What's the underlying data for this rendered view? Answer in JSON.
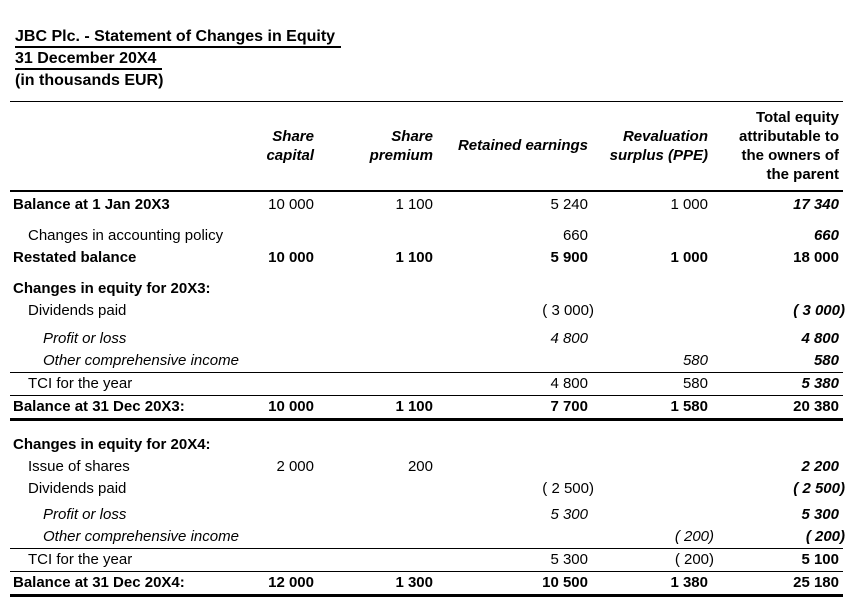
{
  "title": {
    "line1": "JBC Plc. - Statement of Changes in Equity",
    "line2": "31 December 20X4",
    "line3": "(in thousands EUR)"
  },
  "table": {
    "columns": [
      {
        "lines": [],
        "emphasis": ""
      },
      {
        "lines": [
          "Share",
          "capital"
        ],
        "emphasis": "bold-italic"
      },
      {
        "lines": [
          "Share",
          "premium"
        ],
        "emphasis": "bold-italic"
      },
      {
        "lines": [
          "Retained earnings"
        ],
        "emphasis": "bold-italic"
      },
      {
        "lines": [
          "Revaluation",
          "surplus (PPE)"
        ],
        "emphasis": "bold-italic"
      },
      {
        "lines": [
          "Total equity",
          "attributable to",
          "the owners of",
          "the parent"
        ],
        "emphasis": "bold"
      }
    ],
    "rows": [
      {
        "label": "Balance at 1 Jan 20X3",
        "indent": 0,
        "label_style": "bold",
        "values": [
          "10 000",
          "1 100",
          "5 240",
          "1 000",
          "17 340"
        ],
        "value_style": "",
        "total_style": "bold-italic",
        "gap": 2,
        "border_top": false,
        "border_bottom": false
      },
      {
        "label": "Changes in accounting policy",
        "indent": 1,
        "label_style": "",
        "values": [
          "",
          "",
          "660",
          "",
          "660"
        ],
        "value_style": "",
        "total_style": "bold-italic",
        "gap": 9,
        "border_top": false,
        "border_bottom": false
      },
      {
        "label": "Restated balance",
        "indent": 0,
        "label_style": "bold",
        "values": [
          "10 000",
          "1 100",
          "5 900",
          "1 000",
          "18 000"
        ],
        "value_style": "bold",
        "total_style": "bold",
        "gap": 0,
        "border_top": false,
        "border_bottom": false
      },
      {
        "label": "Changes in equity for 20X3:",
        "indent": 0,
        "label_style": "bold",
        "values": [
          "",
          "",
          "",
          "",
          ""
        ],
        "value_style": "",
        "total_style": "bold",
        "gap": 9,
        "border_top": false,
        "border_bottom": false
      },
      {
        "label": "Dividends paid",
        "indent": 1,
        "label_style": "",
        "values": [
          "",
          "",
          "( 3 000)",
          "",
          "( 3 000)"
        ],
        "value_style": "",
        "total_style": "bold-italic",
        "gap": 0,
        "border_top": false,
        "border_bottom": false
      },
      {
        "label": "Profit or loss",
        "indent": 2,
        "label_style": "italic",
        "values": [
          "",
          "",
          "4 800",
          "",
          "4 800"
        ],
        "value_style": "italic",
        "total_style": "bold-italic",
        "gap": 6,
        "border_top": false,
        "border_bottom": false
      },
      {
        "label": "Other comprehensive income",
        "indent": 2,
        "label_style": "italic",
        "values": [
          "",
          "",
          "",
          "580",
          "580"
        ],
        "value_style": "italic",
        "total_style": "bold-italic",
        "gap": 0,
        "border_top": false,
        "border_bottom": false
      },
      {
        "label": "TCI for the year",
        "indent": 1,
        "label_style": "",
        "values": [
          "",
          "",
          "4 800",
          "580",
          "5 380"
        ],
        "value_style": "",
        "total_style": "bold-italic",
        "gap": 0,
        "border_top": true,
        "border_bottom": false
      },
      {
        "label": "Balance at 31 Dec 20X3:",
        "indent": 0,
        "label_style": "bold",
        "values": [
          "10 000",
          "1 100",
          "7 700",
          "1 580",
          "20 380"
        ],
        "value_style": "bold",
        "total_style": "bold",
        "gap": 0,
        "border_top": true,
        "border_bottom": true
      },
      {
        "label": "Changes in equity for 20X4:",
        "indent": 0,
        "label_style": "bold",
        "values": [
          "",
          "",
          "",
          "",
          ""
        ],
        "value_style": "",
        "total_style": "bold",
        "gap": 13,
        "border_top": false,
        "border_bottom": false
      },
      {
        "label": "Issue of shares",
        "indent": 1,
        "label_style": "",
        "values": [
          "2 000",
          "200",
          "",
          "",
          "2 200"
        ],
        "value_style": "",
        "total_style": "bold-italic",
        "gap": 0,
        "border_top": false,
        "border_bottom": false
      },
      {
        "label": "Dividends paid",
        "indent": 1,
        "label_style": "",
        "values": [
          "",
          "",
          "( 2 500)",
          "",
          "( 2 500)"
        ],
        "value_style": "",
        "total_style": "bold-italic",
        "gap": 0,
        "border_top": false,
        "border_bottom": false
      },
      {
        "label": "Profit or loss",
        "indent": 2,
        "label_style": "italic",
        "values": [
          "",
          "",
          "5 300",
          "",
          "5 300"
        ],
        "value_style": "italic",
        "total_style": "bold-italic",
        "gap": 4,
        "border_top": false,
        "border_bottom": false
      },
      {
        "label": "Other comprehensive income",
        "indent": 2,
        "label_style": "italic",
        "values": [
          "",
          "",
          "",
          "( 200)",
          "( 200)"
        ],
        "value_style": "italic",
        "total_style": "bold-italic",
        "gap": 0,
        "border_top": false,
        "border_bottom": false
      },
      {
        "label": "TCI for the year",
        "indent": 1,
        "label_style": "",
        "values": [
          "",
          "",
          "5 300",
          "( 200)",
          "5 100"
        ],
        "value_style": "",
        "total_style": "bold",
        "gap": 0,
        "border_top": true,
        "border_bottom": false
      },
      {
        "label": "Balance at 31 Dec 20X4:",
        "indent": 0,
        "label_style": "bold",
        "values": [
          "12 000",
          "1 300",
          "10 500",
          "1 380",
          "25 180"
        ],
        "value_style": "bold",
        "total_style": "bold",
        "gap": 0,
        "border_top": true,
        "border_bottom": true
      }
    ]
  }
}
